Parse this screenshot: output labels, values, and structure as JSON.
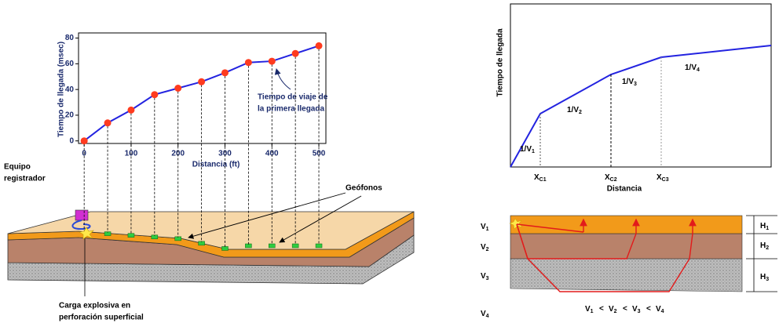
{
  "chart_data": {
    "type": "line",
    "x": [
      0,
      50,
      100,
      150,
      200,
      250,
      300,
      350,
      400,
      450,
      500
    ],
    "series": [
      {
        "color": "#2323e0",
        "marker_color": "#ff3b1f",
        "values": [
          0,
          14,
          24,
          36,
          41,
          46,
          53,
          61,
          62,
          68,
          74
        ]
      }
    ],
    "xlim": [
      -12,
      515
    ],
    "ylim": [
      -2,
      84
    ],
    "xticks": [
      0,
      100,
      200,
      300,
      400,
      500
    ],
    "yticks": [
      0,
      20,
      40,
      60,
      80
    ],
    "xlabel": "Distancia (ft)",
    "ylabel": "Tiempo de llegada (msec)",
    "annotation": [
      "Tiempo de viaje de",
      "la primera llegada"
    ]
  },
  "survey": {
    "recorder_label": [
      "Equipo",
      "registrador"
    ],
    "geophones_label": "Geófonos",
    "charge_label": [
      "Carga explosiva en",
      "perforación superficial"
    ]
  },
  "traveltime_plot": {
    "ylabel": "Tiempo de llegada",
    "xlabel": "Distancia",
    "slopes": [
      {
        "base": "1/V",
        "sub": "1"
      },
      {
        "base": "1/V",
        "sub": "2"
      },
      {
        "base": "1/V",
        "sub": "3"
      },
      {
        "base": "1/V",
        "sub": "4"
      }
    ],
    "crossovers": [
      {
        "base": "X",
        "sub": "C1"
      },
      {
        "base": "X",
        "sub": "C2"
      },
      {
        "base": "X",
        "sub": "C3"
      }
    ]
  },
  "layers": {
    "velocities": [
      {
        "base": "V",
        "sub": "1"
      },
      {
        "base": "V",
        "sub": "2"
      },
      {
        "base": "V",
        "sub": "3"
      },
      {
        "base": "V",
        "sub": "4"
      }
    ],
    "thicknesses": [
      {
        "base": "H",
        "sub": "1"
      },
      {
        "base": "H",
        "sub": "2"
      },
      {
        "base": "H",
        "sub": "3"
      }
    ],
    "relation": {
      "terms": [
        {
          "base": "V",
          "sub": "1"
        },
        {
          "base": "V",
          "sub": "2"
        },
        {
          "base": "V",
          "sub": "3"
        },
        {
          "base": "V",
          "sub": "4"
        }
      ],
      "operator": "<"
    }
  }
}
